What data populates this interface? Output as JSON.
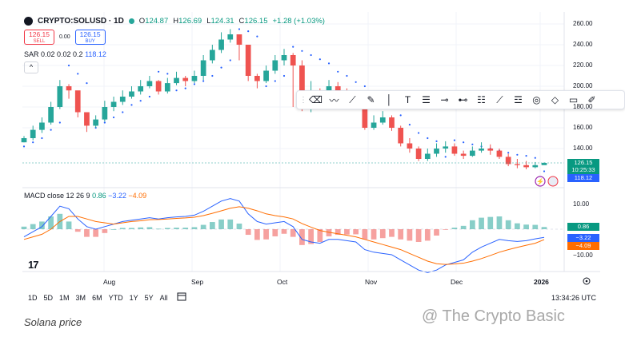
{
  "header": {
    "symbol": "CRYPTO:SOLUSD · 1D",
    "open_label": "O",
    "open": "124.87",
    "high_label": "H",
    "high": "126.69",
    "low_label": "L",
    "low": "124.31",
    "close_label": "C",
    "close": "126.15",
    "change": "+1.28 (+1.03%)"
  },
  "trade": {
    "sell_price": "126.15",
    "sell_label": "SELL",
    "spread": "0.00",
    "buy_price": "126.15",
    "buy_label": "BUY"
  },
  "sar_legend": {
    "label": "SAR 0.02 0.02 0.2",
    "value": "118.12"
  },
  "macd_legend": {
    "label": "MACD close 12 26 9",
    "hist": "0.86",
    "macd": "−3.22",
    "signal": "−4.09"
  },
  "price_axis": [
    "260.00",
    "240.00",
    "220.00",
    "200.00",
    "180.00",
    "160.00",
    "140.00"
  ],
  "price_badges": {
    "last": "126.15",
    "countdown": "10:25:33",
    "sar": "118.12"
  },
  "macd_axis": {
    "top": "10.00",
    "bottom": "−10.00"
  },
  "macd_badges": {
    "hist": "0.86",
    "macd": "−3.22",
    "signal": "−4.09"
  },
  "time_axis": [
    "Aug",
    "Sep",
    "Oct",
    "Nov",
    "Dec",
    "2026"
  ],
  "ranges": [
    "1D",
    "5D",
    "1M",
    "3M",
    "6M",
    "YTD",
    "1Y",
    "5Y",
    "All"
  ],
  "clock": "13:34:26 UTC",
  "caption": "Solana price",
  "watermark": "@ The Crypto Basic",
  "colors": {
    "up": "#26a69a",
    "down": "#ef5350",
    "sar": "#2962ff",
    "macd": "#2962ff",
    "signal": "#ff6d00"
  },
  "chart_data": {
    "type": "candlestick",
    "x": [
      "Jul 10",
      "Jul 13",
      "Jul 16",
      "Jul 19",
      "Jul 22",
      "Jul 25",
      "Jul 28",
      "Jul 31",
      "Aug 3",
      "Aug 6",
      "Aug 9",
      "Aug 12",
      "Aug 15",
      "Aug 18",
      "Aug 21",
      "Aug 24",
      "Aug 27",
      "Aug 30",
      "Sep 2",
      "Sep 5",
      "Sep 8",
      "Sep 11",
      "Sep 14",
      "Sep 17",
      "Sep 20",
      "Sep 23",
      "Sep 26",
      "Sep 29",
      "Oct 2",
      "Oct 5",
      "Oct 8",
      "Oct 11",
      "Oct 14",
      "Oct 17",
      "Oct 20",
      "Oct 23",
      "Oct 26",
      "Oct 29",
      "Nov 1",
      "Nov 4",
      "Nov 7",
      "Nov 10",
      "Nov 13",
      "Nov 16",
      "Nov 19",
      "Nov 22",
      "Nov 25",
      "Nov 28",
      "Dec 1",
      "Dec 4",
      "Dec 7",
      "Dec 10",
      "Dec 13",
      "Dec 16",
      "Dec 19",
      "Dec 22",
      "Dec 25",
      "Dec 28",
      "Dec 31"
    ],
    "close": [
      150,
      158,
      165,
      180,
      200,
      196,
      175,
      162,
      168,
      180,
      185,
      190,
      195,
      200,
      205,
      195,
      203,
      208,
      205,
      210,
      225,
      235,
      245,
      250,
      240,
      210,
      205,
      215,
      225,
      230,
      220,
      180,
      195,
      190,
      200,
      195,
      190,
      185,
      160,
      165,
      170,
      160,
      145,
      140,
      130,
      135,
      140,
      142,
      135,
      133,
      138,
      140,
      138,
      132,
      125,
      124,
      122,
      124,
      126.15
    ],
    "high": [
      152,
      162,
      170,
      185,
      206,
      202,
      180,
      167,
      172,
      186,
      190,
      196,
      200,
      206,
      210,
      206,
      208,
      214,
      210,
      215,
      230,
      240,
      252,
      255,
      250,
      232,
      212,
      220,
      230,
      236,
      232,
      225,
      205,
      198,
      206,
      204,
      198,
      195,
      187,
      172,
      176,
      172,
      162,
      150,
      142,
      140,
      145,
      147,
      145,
      138,
      142,
      146,
      144,
      140,
      135,
      130,
      128,
      127,
      126.69
    ],
    "low": [
      146,
      148,
      155,
      163,
      178,
      188,
      170,
      156,
      160,
      166,
      176,
      182,
      188,
      192,
      198,
      192,
      193,
      201,
      200,
      203,
      206,
      222,
      232,
      242,
      225,
      205,
      198,
      203,
      212,
      220,
      180,
      176,
      175,
      183,
      188,
      188,
      183,
      180,
      158,
      158,
      163,
      157,
      142,
      136,
      128,
      128,
      132,
      136,
      133,
      130,
      132,
      136,
      134,
      130,
      123,
      121,
      120,
      121,
      124.31
    ],
    "sar": [
      142,
      146,
      150,
      158,
      165,
      220,
      212,
      203,
      160,
      165,
      170,
      175,
      182,
      186,
      190,
      214,
      212,
      196,
      198,
      202,
      205,
      210,
      218,
      225,
      255,
      253,
      248,
      200,
      205,
      210,
      238,
      234,
      230,
      226,
      222,
      214,
      210,
      204,
      200,
      195,
      188,
      180,
      172,
      163,
      155,
      150,
      147,
      132,
      148,
      146,
      144,
      142,
      140,
      138,
      136,
      134,
      133,
      131,
      118.12
    ],
    "macd": [
      -3,
      -1,
      1,
      5,
      9,
      8,
      4,
      1,
      0,
      1,
      2,
      3,
      3.5,
      4,
      4.5,
      4,
      4.5,
      4.8,
      5,
      5.5,
      7,
      9,
      11,
      12,
      11,
      6,
      3,
      2,
      2.5,
      3,
      1,
      -4,
      -5,
      -5.5,
      -4,
      -4,
      -4.5,
      -5,
      -8,
      -9,
      -9.5,
      -10,
      -12,
      -14,
      -16,
      -17,
      -16,
      -14,
      -13,
      -12,
      -9,
      -7,
      -5.5,
      -4,
      -4.5,
      -4.8,
      -4.5,
      -3.8,
      -3.22
    ],
    "signal": [
      -4,
      -3,
      -2,
      0,
      3,
      5,
      5,
      4,
      3,
      2.5,
      2,
      2.5,
      3,
      3.3,
      3.7,
      3.8,
      4,
      4.2,
      4.4,
      4.7,
      5.3,
      6.2,
      7.2,
      8.2,
      8.8,
      8.2,
      7.2,
      6,
      5.3,
      4.8,
      4,
      2.2,
      0.8,
      -0.5,
      -1.2,
      -1.8,
      -2.4,
      -3,
      -4,
      -5,
      -6,
      -7,
      -8,
      -9.5,
      -11,
      -12.5,
      -13.5,
      -13.8,
      -13.6,
      -13.3,
      -12.5,
      -11.5,
      -10.3,
      -9,
      -8,
      -7.1,
      -6.3,
      -5.5,
      -4.09
    ],
    "hist": [
      1,
      2,
      3,
      5,
      6,
      3,
      -1,
      -3,
      -3,
      -1.5,
      0,
      0.5,
      0.5,
      0.7,
      0.8,
      0.2,
      0.5,
      0.6,
      0.6,
      0.8,
      1.7,
      2.8,
      3.8,
      3.8,
      2.2,
      -2.2,
      -4.2,
      -4,
      -2.8,
      -1.8,
      -3,
      -6.2,
      -5.8,
      -5,
      -2.8,
      -2.2,
      -2.1,
      -2,
      -4,
      -4,
      -3.5,
      -3,
      -4,
      -4.5,
      -5,
      -4.5,
      -2.5,
      -0.2,
      0.6,
      1.3,
      3.5,
      4.5,
      4.8,
      5,
      3.5,
      2.3,
      1.8,
      1.7,
      0.86
    ],
    "ylim": [
      110,
      265
    ],
    "macd_ylim": [
      -17,
      16
    ],
    "grid": true
  }
}
